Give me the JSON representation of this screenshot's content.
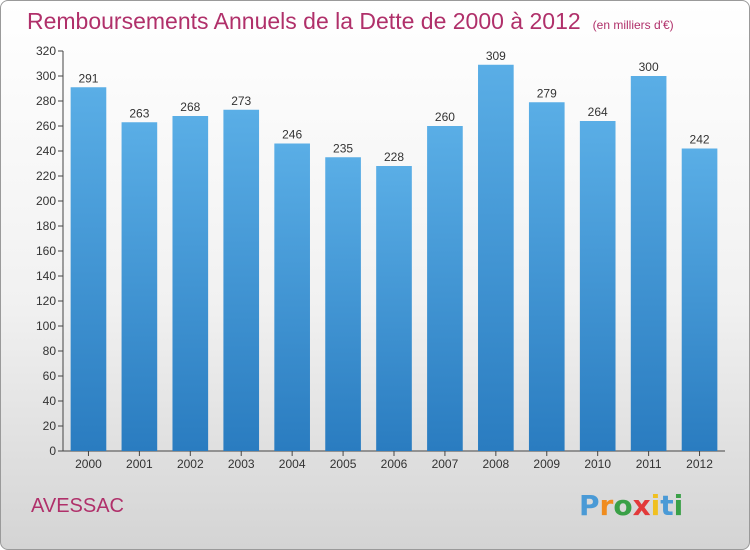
{
  "title": "Remboursements Annuels de la Dette de 2000 à 2012",
  "unit": "(en milliers d'€)",
  "commune": "AVESSAC",
  "logo": {
    "letters": [
      "P",
      "r",
      "o",
      "x",
      "i",
      "t",
      "i"
    ],
    "colors": [
      "#4a9ad6",
      "#f08c1e",
      "#3aa047",
      "#e23a3a",
      "#f0c020",
      "#4a9ad6",
      "#3aa047"
    ]
  },
  "colors": {
    "bar_top": "#5aaee6",
    "bar_bottom": "#2a7cc0",
    "title": "#b0306a"
  },
  "chart_data": {
    "type": "bar",
    "categories": [
      "2000",
      "2001",
      "2002",
      "2003",
      "2004",
      "2005",
      "2006",
      "2007",
      "2008",
      "2009",
      "2010",
      "2011",
      "2012"
    ],
    "values": [
      291,
      263,
      268,
      273,
      246,
      235,
      228,
      260,
      309,
      279,
      264,
      300,
      242
    ],
    "title": "Remboursements Annuels de la Dette de 2000 à 2012",
    "xlabel": "",
    "ylabel": "",
    "ylim": [
      0,
      320
    ],
    "yticks": [
      0,
      20,
      40,
      60,
      80,
      100,
      120,
      140,
      160,
      180,
      200,
      220,
      240,
      260,
      280,
      300,
      320
    ],
    "grid": false,
    "data_labels": true
  }
}
